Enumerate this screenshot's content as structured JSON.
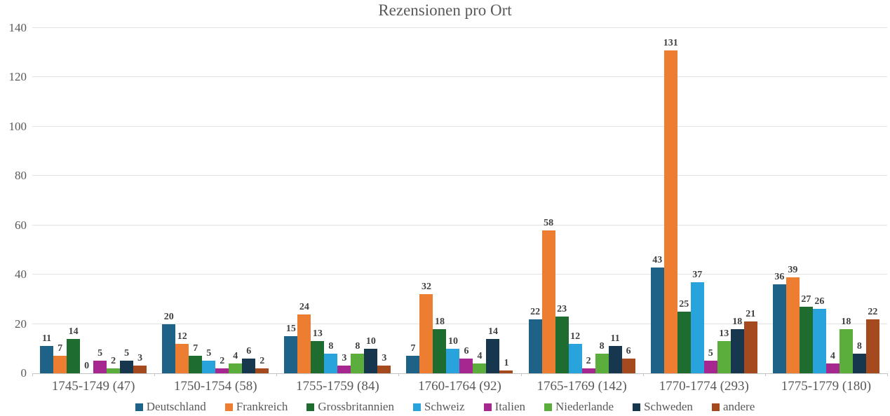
{
  "chart_data": {
    "type": "bar",
    "title": "Rezensionen pro Ort",
    "xlabel": "",
    "ylabel": "",
    "ylim": [
      0,
      140
    ],
    "y_ticks": [
      0,
      20,
      40,
      60,
      80,
      100,
      120,
      140
    ],
    "grid": true,
    "data_labels": true,
    "legend_position": "bottom",
    "categories": [
      "1745-1749 (47)",
      "1750-1754 (58)",
      "1755-1759 (84)",
      "1760-1764 (92)",
      "1765-1769 (142)",
      "1770-1774 (293)",
      "1775-1779 (180)"
    ],
    "series": [
      {
        "name": "Deutschland",
        "color": "#1F6287",
        "values": [
          11,
          20,
          15,
          7,
          22,
          43,
          36
        ]
      },
      {
        "name": "Frankreich",
        "color": "#ED7D31",
        "values": [
          7,
          12,
          24,
          32,
          58,
          131,
          39
        ]
      },
      {
        "name": "Grossbritannien",
        "color": "#1E6C30",
        "values": [
          14,
          7,
          13,
          18,
          23,
          25,
          27
        ]
      },
      {
        "name": "Schweiz",
        "color": "#29A3DC",
        "values": [
          0,
          5,
          8,
          10,
          12,
          37,
          26
        ]
      },
      {
        "name": "Italien",
        "color": "#A5278F",
        "values": [
          5,
          2,
          3,
          6,
          2,
          5,
          4
        ]
      },
      {
        "name": "Niederlande",
        "color": "#5BAE3C",
        "values": [
          2,
          4,
          8,
          4,
          8,
          13,
          18
        ]
      },
      {
        "name": "Schweden",
        "color": "#17374E",
        "values": [
          5,
          6,
          10,
          14,
          11,
          18,
          8
        ]
      },
      {
        "name": "andere",
        "color": "#A54A1F",
        "values": [
          3,
          2,
          3,
          1,
          6,
          21,
          22
        ]
      }
    ],
    "colors": {
      "title_text": "#595959",
      "axis_text": "#595959",
      "data_label_text": "#3F3F3F",
      "gridline": "#E2E2E2",
      "axis_line": "#C3C3C3",
      "background": "#FFFFFF"
    }
  }
}
